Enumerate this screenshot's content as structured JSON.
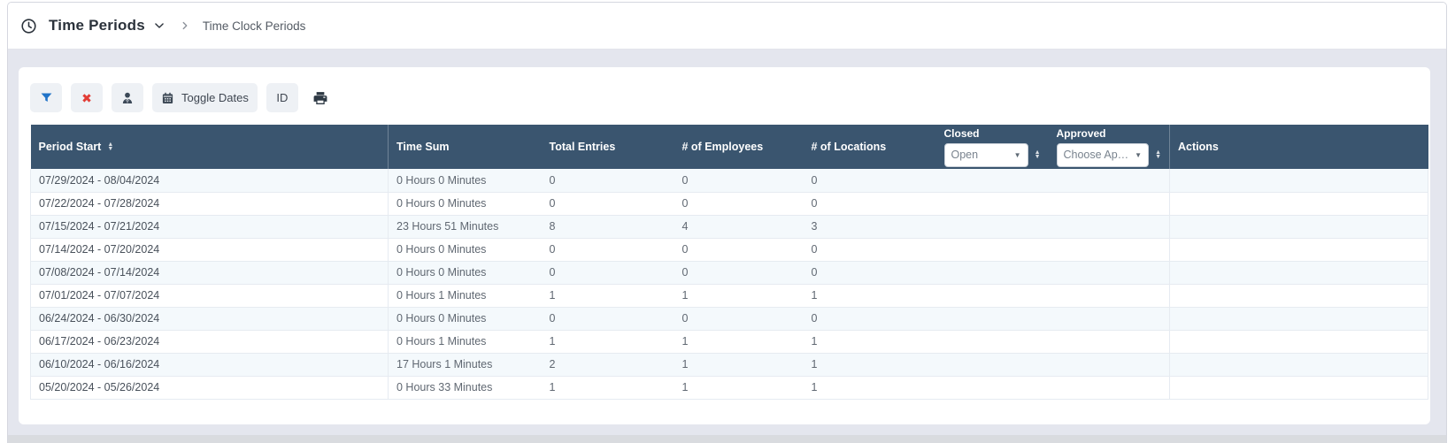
{
  "breadcrumb": {
    "title": "Time Periods",
    "subtitle": "Time Clock Periods"
  },
  "toolbar": {
    "filter_button": {
      "icon": "filter-icon"
    },
    "clear_button": {
      "icon": "x-icon",
      "glyph": "✖"
    },
    "supervisor_button": {
      "icon": "user-tie-icon"
    },
    "toggle_dates_button": {
      "icon": "calendar-icon",
      "label": "Toggle Dates"
    },
    "id_button": {
      "label": "ID"
    },
    "print_button": {
      "icon": "print-icon"
    }
  },
  "table": {
    "columns": [
      "Period Start",
      "Time Sum",
      "Total Entries",
      "# of Employees",
      "# of Locations",
      "Closed",
      "Approved",
      "Actions"
    ],
    "closed_filter": {
      "label": "Closed",
      "value": "Open"
    },
    "approved_filter": {
      "label": "Approved",
      "value": "Choose Appr..."
    },
    "rows": [
      [
        "07/29/2024 - 08/04/2024",
        "0 Hours 0 Minutes",
        "0",
        "0",
        "0",
        "",
        "",
        ""
      ],
      [
        "07/22/2024 - 07/28/2024",
        "0 Hours 0 Minutes",
        "0",
        "0",
        "0",
        "",
        "",
        ""
      ],
      [
        "07/15/2024 - 07/21/2024",
        "23 Hours 51 Minutes",
        "8",
        "4",
        "3",
        "",
        "",
        ""
      ],
      [
        "07/14/2024 - 07/20/2024",
        "0 Hours 0 Minutes",
        "0",
        "0",
        "0",
        "",
        "",
        ""
      ],
      [
        "07/08/2024 - 07/14/2024",
        "0 Hours 0 Minutes",
        "0",
        "0",
        "0",
        "",
        "",
        ""
      ],
      [
        "07/01/2024 - 07/07/2024",
        "0 Hours 1 Minutes",
        "1",
        "1",
        "1",
        "",
        "",
        ""
      ],
      [
        "06/24/2024 - 06/30/2024",
        "0 Hours 0 Minutes",
        "0",
        "0",
        "0",
        "",
        "",
        ""
      ],
      [
        "06/17/2024 - 06/23/2024",
        "0 Hours 1 Minutes",
        "1",
        "1",
        "1",
        "",
        "",
        ""
      ],
      [
        "06/10/2024 - 06/16/2024",
        "17 Hours 1 Minutes",
        "2",
        "1",
        "1",
        "",
        "",
        ""
      ],
      [
        "05/20/2024 - 05/26/2024",
        "0 Hours 33 Minutes",
        "1",
        "1",
        "1",
        "",
        "",
        ""
      ]
    ]
  },
  "colors": {
    "header_bg": "#3A556F",
    "accent_blue": "#2173C8",
    "danger_red": "#E23C35",
    "row_alt_bg": "#F4F9FC",
    "page_bg": "#E4E6EE"
  }
}
